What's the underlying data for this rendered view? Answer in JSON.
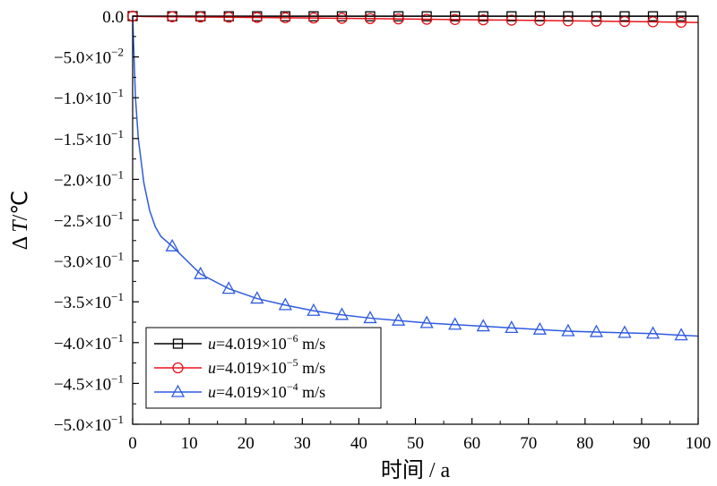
{
  "chart_data": {
    "type": "line",
    "xlabel": "时间 / a",
    "ylabel_symbol": "Δ",
    "ylabel_var": "T",
    "ylabel_unit": "/℃",
    "xlim": [
      0,
      100
    ],
    "ylim": [
      -0.5,
      0.0
    ],
    "x_ticks": [
      0,
      10,
      20,
      30,
      40,
      50,
      60,
      70,
      80,
      90,
      100
    ],
    "y_ticks": [
      {
        "value": 0.0,
        "mantissa": "0.0",
        "exp": ""
      },
      {
        "value": -0.05,
        "mantissa": "−5.0×10",
        "exp": "−2"
      },
      {
        "value": -0.1,
        "mantissa": "−1.0×10",
        "exp": "−1"
      },
      {
        "value": -0.15,
        "mantissa": "−1.5×10",
        "exp": "−1"
      },
      {
        "value": -0.2,
        "mantissa": "−2.0×10",
        "exp": "−1"
      },
      {
        "value": -0.25,
        "mantissa": "−2.5×10",
        "exp": "−1"
      },
      {
        "value": -0.3,
        "mantissa": "−3.0×10",
        "exp": "−1"
      },
      {
        "value": -0.35,
        "mantissa": "−3.5×10",
        "exp": "−1"
      },
      {
        "value": -0.4,
        "mantissa": "−4.0×10",
        "exp": "−1"
      },
      {
        "value": -0.45,
        "mantissa": "−4.5×10",
        "exp": "−1"
      },
      {
        "value": -0.5,
        "mantissa": "−5.0×10",
        "exp": "−1"
      }
    ],
    "grid": false,
    "legend_position": "bottom-left",
    "series": [
      {
        "name": "u=4.019×10−6 m/s",
        "label_var": "u",
        "label_base": "=4.019×10",
        "label_exp": "−6",
        "label_unit": " m/s",
        "color": "#000000",
        "marker": "square",
        "x": [
          0,
          1,
          2,
          7,
          12,
          17,
          22,
          27,
          32,
          37,
          42,
          47,
          52,
          57,
          62,
          67,
          72,
          77,
          82,
          87,
          92,
          97,
          100
        ],
        "y": [
          0,
          -0.0001,
          -0.0001,
          -0.0002,
          -0.0002,
          -0.0002,
          -0.0002,
          -0.0002,
          -0.0002,
          -0.0002,
          -0.0002,
          -0.0002,
          -0.0002,
          -0.0002,
          -0.0002,
          -0.0002,
          -0.0002,
          -0.0002,
          -0.0002,
          -0.0002,
          -0.0002,
          -0.0002,
          -0.0002
        ],
        "marker_x": [
          0,
          7,
          12,
          17,
          22,
          27,
          32,
          37,
          42,
          47,
          52,
          57,
          62,
          67,
          72,
          77,
          82,
          87,
          92,
          97
        ]
      },
      {
        "name": "u=4.019×10−5 m/s",
        "label_var": "u",
        "label_base": "=4.019×10",
        "label_exp": "−5",
        "label_unit": " m/s",
        "color": "#e8141a",
        "marker": "circle",
        "x": [
          0,
          2,
          7,
          12,
          17,
          22,
          27,
          32,
          37,
          42,
          47,
          52,
          57,
          62,
          67,
          72,
          77,
          82,
          87,
          92,
          97,
          100
        ],
        "y": [
          0,
          -0.0005,
          -0.0008,
          -0.0011,
          -0.0014,
          -0.0017,
          -0.002,
          -0.0023,
          -0.0027,
          -0.003,
          -0.0034,
          -0.0038,
          -0.0042,
          -0.0046,
          -0.005,
          -0.0054,
          -0.0058,
          -0.0062,
          -0.0066,
          -0.007,
          -0.0075,
          -0.0078
        ],
        "marker_x": [
          0,
          7,
          12,
          17,
          22,
          27,
          32,
          37,
          42,
          47,
          52,
          57,
          62,
          67,
          72,
          77,
          82,
          87,
          92,
          97
        ]
      },
      {
        "name": "u=4.019×10−4 m/s",
        "label_var": "u",
        "label_base": "=4.019×10",
        "label_exp": "−4",
        "label_unit": " m/s",
        "color": "#2f5be0",
        "marker": "triangle",
        "x": [
          0,
          0.5,
          1,
          2,
          3,
          4,
          5,
          7,
          12,
          17,
          22,
          27,
          32,
          37,
          42,
          47,
          52,
          57,
          62,
          67,
          72,
          77,
          82,
          87,
          92,
          97,
          100
        ],
        "y": [
          0,
          -0.1,
          -0.15,
          -0.205,
          -0.238,
          -0.258,
          -0.27,
          -0.282,
          -0.316,
          -0.334,
          -0.346,
          -0.354,
          -0.361,
          -0.366,
          -0.37,
          -0.373,
          -0.376,
          -0.378,
          -0.38,
          -0.382,
          -0.384,
          -0.386,
          -0.387,
          -0.388,
          -0.389,
          -0.391,
          -0.392
        ],
        "marker_x": [
          7,
          12,
          17,
          22,
          27,
          32,
          37,
          42,
          47,
          52,
          57,
          62,
          67,
          72,
          77,
          82,
          87,
          92,
          97
        ]
      }
    ]
  }
}
